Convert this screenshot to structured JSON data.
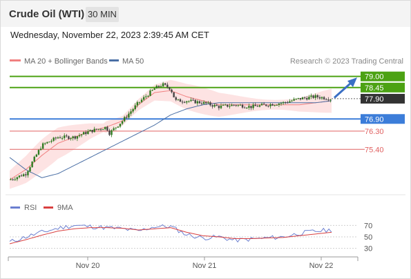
{
  "header": {
    "instrument": "Crude Oil (WTI)",
    "timeframe": "30 MIN"
  },
  "timestamp": "Wednesday, November 22, 2023 2:39:45 AM CET",
  "legend": {
    "ma20_label": "MA 20 + Bollinger Bands",
    "ma50_label": "MA 50",
    "copyright": "Research © 2023 Trading Central"
  },
  "rsi_legend": {
    "rsi_label": "RSI",
    "ma_label": "9MA"
  },
  "colors": {
    "resistance": "#4ca213",
    "pivot": "#3c7dd9",
    "support": "#e06060",
    "current": "#333333",
    "ma20": "#f08080",
    "bollinger": "#fde3e3",
    "ma50": "#4a6fa5",
    "candle": "#2d7a1f",
    "candle_down": "#444444",
    "rsi": "#6b7fd0",
    "rsi_ma": "#d94040",
    "arrow": "#3a6fc4"
  },
  "chart_data": [
    {
      "type": "candlestick",
      "title": "Crude Oil (WTI) 30 MIN",
      "x_ticks": [
        "Nov 20",
        "Nov 21",
        "Nov 22"
      ],
      "ylim": [
        73.5,
        79.5
      ],
      "levels": [
        {
          "value": 79.0,
          "label": "79.00",
          "kind": "resistance"
        },
        {
          "value": 78.45,
          "label": "78.45",
          "kind": "resistance"
        },
        {
          "value": 77.9,
          "label": "77.90",
          "kind": "current"
        },
        {
          "value": 76.9,
          "label": "76.90",
          "kind": "pivot"
        },
        {
          "value": 76.3,
          "label": "76.30",
          "kind": "support"
        },
        {
          "value": 75.4,
          "label": "75.40",
          "kind": "support"
        }
      ],
      "series": [
        {
          "name": "MA 20 + Bollinger Bands",
          "role": "ma20",
          "x": [
            0,
            10,
            20,
            30,
            40,
            50,
            60,
            70,
            80,
            90,
            100,
            110,
            120,
            130,
            140,
            150,
            160,
            170,
            180,
            190,
            200
          ],
          "values": [
            73.9,
            74.4,
            75.1,
            75.7,
            76.0,
            76.3,
            76.5,
            76.8,
            77.6,
            78.2,
            78.3,
            78.0,
            77.8,
            77.6,
            77.6,
            77.6,
            77.6,
            77.6,
            77.6,
            77.7,
            77.8
          ]
        },
        {
          "name": "MA 50",
          "role": "ma50",
          "x": [
            0,
            10,
            20,
            30,
            40,
            50,
            60,
            70,
            80,
            90,
            100,
            110,
            120,
            130,
            140,
            150,
            160,
            170,
            180,
            190,
            200
          ],
          "values": [
            75.0,
            74.4,
            74.0,
            74.2,
            74.6,
            75.0,
            75.4,
            75.8,
            76.2,
            76.6,
            77.1,
            77.4,
            77.6,
            77.7,
            77.7,
            77.7,
            77.7,
            77.7,
            77.7,
            77.7,
            77.8
          ]
        }
      ],
      "price_path": {
        "x": [
          0,
          10,
          20,
          30,
          40,
          50,
          60,
          62,
          70,
          80,
          90,
          95,
          100,
          103,
          110,
          120,
          130,
          140,
          150,
          160,
          170,
          180,
          190,
          200
        ],
        "values": [
          73.9,
          74.2,
          75.6,
          76.0,
          76.0,
          76.3,
          76.5,
          76.2,
          76.8,
          77.7,
          78.4,
          78.6,
          78.4,
          77.8,
          77.8,
          77.7,
          77.5,
          77.6,
          77.5,
          77.6,
          77.7,
          77.9,
          78.0,
          77.9
        ]
      },
      "xlim": [
        0,
        200
      ]
    },
    {
      "type": "line",
      "title": "RSI",
      "ylim": [
        20,
        80
      ],
      "y_ticks": [
        70,
        50,
        30
      ],
      "series": [
        {
          "name": "RSI",
          "role": "rsi",
          "x": [
            0,
            10,
            20,
            30,
            40,
            50,
            60,
            70,
            80,
            90,
            100,
            110,
            120,
            130,
            140,
            150,
            160,
            170,
            180,
            190,
            200
          ],
          "values": [
            41,
            50,
            58,
            65,
            70,
            68,
            66,
            64,
            60,
            68,
            68,
            54,
            48,
            50,
            44,
            46,
            48,
            50,
            56,
            60,
            62
          ]
        },
        {
          "name": "9MA",
          "role": "rsi_ma",
          "x": [
            0,
            10,
            20,
            30,
            40,
            50,
            60,
            70,
            80,
            90,
            100,
            110,
            120,
            130,
            140,
            150,
            160,
            170,
            180,
            190,
            200
          ],
          "values": [
            38,
            45,
            53,
            60,
            64,
            66,
            66,
            65,
            62,
            64,
            66,
            58,
            52,
            50,
            47,
            47,
            48,
            49,
            52,
            55,
            58
          ]
        }
      ],
      "xlim": [
        0,
        200
      ]
    }
  ]
}
